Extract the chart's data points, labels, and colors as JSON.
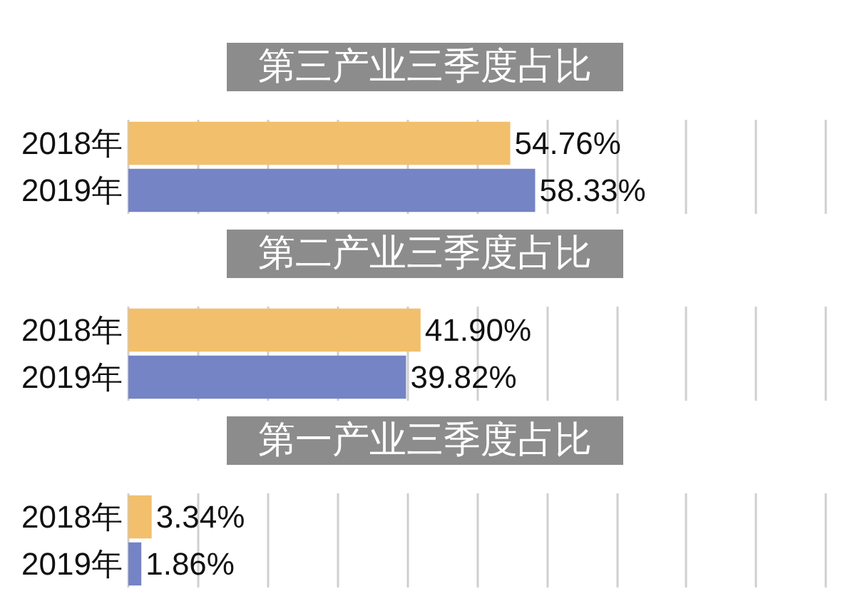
{
  "chart_data": [
    {
      "type": "bar",
      "orientation": "horizontal",
      "title": "第三产业三季度占比",
      "categories": [
        "2018年",
        "2019年"
      ],
      "values": [
        54.76,
        58.33
      ],
      "colors": [
        "#f2bf6c",
        "#7584c4"
      ],
      "value_labels": [
        "54.76%",
        "58.33%"
      ],
      "xlim": [
        0,
        100
      ],
      "xticks": [
        {
          "value": 0,
          "label": null
        },
        {
          "value": 10,
          "label": null
        },
        {
          "value": 20,
          "label": null
        },
        {
          "value": 30,
          "label": null
        },
        {
          "value": 40,
          "label": null
        },
        {
          "value": 50,
          "label": null
        },
        {
          "value": 60,
          "label": null
        },
        {
          "value": 70,
          "label": null
        },
        {
          "value": 80,
          "label": null
        },
        {
          "value": 90,
          "label": null
        },
        {
          "value": 100,
          "label": null
        }
      ],
      "grid": "x",
      "tick_labels": "y"
    },
    {
      "type": "bar",
      "orientation": "horizontal",
      "title": "第二产业三季度占比",
      "categories": [
        "2018年",
        "2019年"
      ],
      "values": [
        41.9,
        39.82
      ],
      "colors": [
        "#f2bf6c",
        "#7584c4"
      ],
      "value_labels": [
        "41.90%",
        "39.82%"
      ],
      "xlim": [
        0,
        100
      ],
      "xticks": [
        {
          "value": 0,
          "label": null
        },
        {
          "value": 10,
          "label": null
        },
        {
          "value": 20,
          "label": null
        },
        {
          "value": 30,
          "label": null
        },
        {
          "value": 40,
          "label": null
        },
        {
          "value": 50,
          "label": null
        },
        {
          "value": 60,
          "label": null
        },
        {
          "value": 70,
          "label": null
        },
        {
          "value": 80,
          "label": null
        },
        {
          "value": 90,
          "label": null
        },
        {
          "value": 100,
          "label": null
        }
      ],
      "grid": "x",
      "tick_labels": "y"
    },
    {
      "type": "bar",
      "orientation": "horizontal",
      "title": "第一产业三季度占比",
      "categories": [
        "2018年",
        "2019年"
      ],
      "values": [
        3.34,
        1.86
      ],
      "colors": [
        "#f2bf6c",
        "#7584c4"
      ],
      "value_labels": [
        "3.34%",
        "1.86%"
      ],
      "xlim": [
        0,
        100
      ],
      "xticks": [
        {
          "value": 0,
          "label": null
        },
        {
          "value": 10,
          "label": null
        },
        {
          "value": 20,
          "label": null
        },
        {
          "value": 30,
          "label": null
        },
        {
          "value": 40,
          "label": null
        },
        {
          "value": 50,
          "label": null
        },
        {
          "value": 60,
          "label": null
        },
        {
          "value": 70,
          "label": null
        },
        {
          "value": 80,
          "label": null
        },
        {
          "value": 90,
          "label": null
        },
        {
          "value": 100,
          "label": null
        }
      ],
      "grid": "x",
      "tick_labels": "y"
    }
  ]
}
